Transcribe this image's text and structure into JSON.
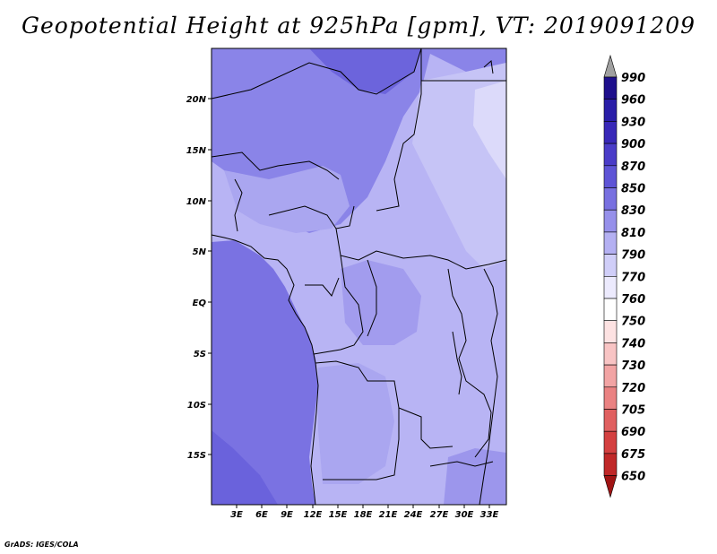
{
  "title": "Geopotential Height at 925hPa [gpm], VT: 2019091209",
  "credit": "GrADS: IGES/COLA",
  "map": {
    "lon_ticks": [
      "3E",
      "6E",
      "9E",
      "12E",
      "15E",
      "18E",
      "21E",
      "24E",
      "27E",
      "30E",
      "33E"
    ],
    "lat_ticks": [
      "20N",
      "15N",
      "10N",
      "5N",
      "EQ",
      "5S",
      "10S",
      "15S"
    ],
    "lon_range": [
      0,
      35
    ],
    "lat_range": [
      -20,
      25
    ]
  },
  "colorbar": {
    "levels": [
      "990",
      "960",
      "930",
      "900",
      "870",
      "850",
      "830",
      "810",
      "790",
      "770",
      "760",
      "750",
      "740",
      "730",
      "720",
      "705",
      "690",
      "675",
      "650"
    ],
    "colors": [
      "#a0a0a0",
      "#1e0f8c",
      "#2a1ea8",
      "#3828b8",
      "#4a3cc8",
      "#5e54d6",
      "#7870e0",
      "#9690ea",
      "#b4b0f2",
      "#d0cef8",
      "#eceafd",
      "#ffffff",
      "#fde2e2",
      "#f8c4c4",
      "#f2a4a4",
      "#ea8282",
      "#e06060",
      "#d44040",
      "#c02828",
      "#a01414"
    ]
  }
}
